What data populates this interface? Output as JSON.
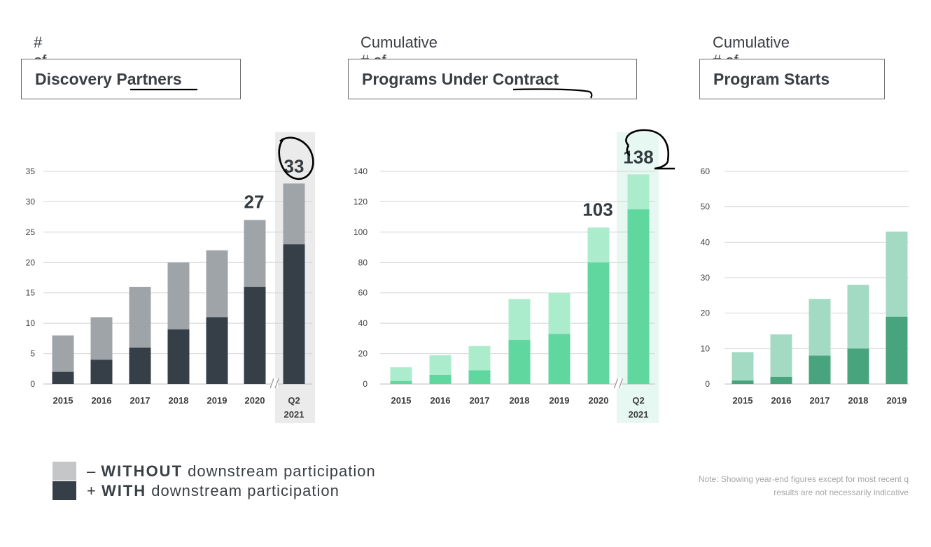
{
  "chart_data": [
    {
      "type": "bar",
      "stacked": true,
      "subtitle": "# of",
      "title_parts": [
        "Discovery ",
        "Partners"
      ],
      "title_underlined": "Partners",
      "categories": [
        "2015",
        "2016",
        "2017",
        "2018",
        "2019",
        "2020",
        "Q2 2021"
      ],
      "series": [
        {
          "name": "+ WITH downstream participation",
          "values": [
            2,
            4,
            6,
            9,
            11,
            16,
            23
          ]
        },
        {
          "name": "– WITHOUT downstream participation",
          "values": [
            6,
            7,
            10,
            11,
            11,
            11,
            10
          ]
        }
      ],
      "totals": [
        8,
        11,
        16,
        20,
        22,
        27,
        33
      ],
      "callouts": {
        "2020": "27",
        "Q2 2021": "33"
      },
      "yticks": [
        0,
        5,
        10,
        15,
        20,
        25,
        30,
        35
      ],
      "ylim": [
        0,
        35
      ],
      "highlight_category": "Q2 2021",
      "axis_break_before": "Q2 2021",
      "colors": {
        "with": "#363f47",
        "without": "#9fa4a9",
        "highlight_bg": "#ebebeb",
        "callout": "#333a40"
      }
    },
    {
      "type": "bar",
      "stacked": true,
      "subtitle": "Cumulative # of",
      "title_parts": [
        "Programs Under ",
        "Contract"
      ],
      "title_underlined": "Contract",
      "categories": [
        "2015",
        "2016",
        "2017",
        "2018",
        "2019",
        "2020",
        "Q2 2021"
      ],
      "series": [
        {
          "name": "+ WITH downstream participation",
          "values": [
            2,
            6,
            9,
            29,
            33,
            80,
            115
          ]
        },
        {
          "name": "– WITHOUT downstream participation",
          "values": [
            9,
            13,
            16,
            27,
            27,
            23,
            23
          ]
        }
      ],
      "totals": [
        11,
        19,
        25,
        56,
        60,
        103,
        138
      ],
      "callouts": {
        "2020": "103",
        "Q2 2021": "138"
      },
      "yticks": [
        0,
        20,
        40,
        60,
        80,
        100,
        120,
        140
      ],
      "ylim": [
        0,
        140
      ],
      "highlight_category": "Q2 2021",
      "axis_break_before": "Q2 2021",
      "colors": {
        "with": "#5fd79f",
        "without": "#abeccd",
        "highlight_bg": "#e6f8f1",
        "callout": "#333a40"
      }
    },
    {
      "type": "bar",
      "stacked": true,
      "subtitle": "Cumulative # of",
      "title_parts": [
        "Program Starts"
      ],
      "title_underlined": "",
      "categories": [
        "2015",
        "2016",
        "2017",
        "2018",
        "2019"
      ],
      "series": [
        {
          "name": "+ WITH downstream participation",
          "values": [
            1,
            2,
            8,
            10,
            19
          ]
        },
        {
          "name": "– WITHOUT downstream participation",
          "values": [
            8,
            12,
            16,
            18,
            24
          ]
        }
      ],
      "totals": [
        9,
        14,
        24,
        28,
        43
      ],
      "callouts": {},
      "yticks": [
        0,
        10,
        20,
        30,
        40,
        50,
        60
      ],
      "ylim": [
        0,
        60
      ],
      "highlight_category": "",
      "axis_break_before": "",
      "colors": {
        "with": "#48a47d",
        "without": "#a3dac3",
        "highlight_bg": "#e6f8f1",
        "callout": "#333a40"
      }
    }
  ],
  "legend": {
    "items": [
      {
        "prefix": "– ",
        "bold": "WITHOUT",
        "rest": " downstream participation",
        "color": "#c4c6c8"
      },
      {
        "prefix": "+ ",
        "bold": "WITH",
        "rest": " downstream participation",
        "color": "#363f47"
      }
    ]
  },
  "note": {
    "line1": "Note: Showing year-end figures except for most recent q",
    "line2": "results are not necessarily indicative"
  },
  "colors": {
    "axis_text": "#3f3f3f",
    "grid": "#d4d4d4",
    "pen": "#000000"
  }
}
